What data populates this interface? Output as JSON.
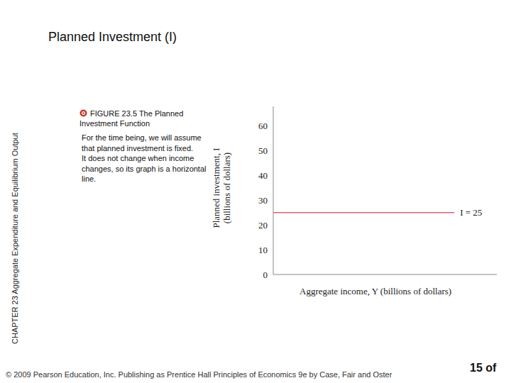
{
  "slide": {
    "heading": "Planned Investment (I)",
    "sidebar": "CHAPTER 23  Aggregate Expenditure and Equilibrium Output",
    "caption": "FIGURE 23.5  The Planned Investment Function",
    "description": [
      "For the time being, we will assume that planned investment is fixed.",
      "It does not change when income changes, so its graph is a horizontal line."
    ],
    "footer": "© 2009 Pearson Education, Inc. Publishing as Prentice Hall   Principles of Economics 9e by Case, Fair and Oster",
    "page": "15 of"
  },
  "chart_data": {
    "type": "line",
    "x": [
      0,
      81
    ],
    "values": [
      25,
      25
    ],
    "color": "#e06070",
    "xlim": [
      0,
      100
    ],
    "ylim": [
      0,
      68
    ],
    "yticks": [
      0,
      10,
      20,
      30,
      40,
      50,
      60
    ],
    "x_label": "Aggregate income, Y (billions of dollars)",
    "y_label": "Planned investment, I (billions of dollars)",
    "annotation": "I = 25",
    "grid": false,
    "tick_labels": "y"
  }
}
